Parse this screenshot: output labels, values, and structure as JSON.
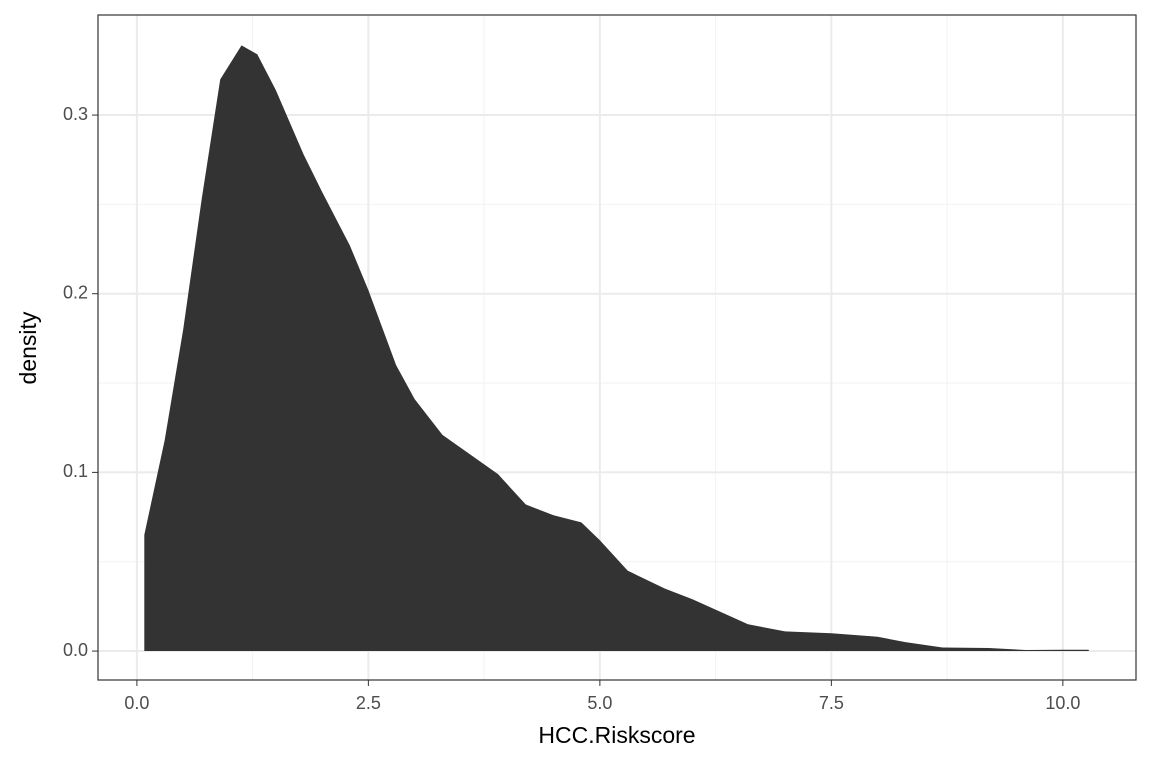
{
  "chart_data": {
    "type": "area",
    "x_label": "HCC.Riskscore",
    "y_label": "density",
    "x": [
      0.08,
      0.3,
      0.5,
      0.7,
      0.9,
      1.13,
      1.3,
      1.5,
      1.8,
      2.0,
      2.3,
      2.5,
      2.8,
      3.0,
      3.3,
      3.6,
      3.9,
      4.2,
      4.5,
      4.8,
      5.0,
      5.3,
      5.7,
      6.0,
      6.3,
      6.6,
      7.0,
      7.5,
      8.0,
      8.3,
      8.7,
      9.2,
      9.6,
      10.0,
      10.28
    ],
    "values": [
      0.065,
      0.118,
      0.18,
      0.253,
      0.32,
      0.339,
      0.334,
      0.314,
      0.278,
      0.257,
      0.227,
      0.202,
      0.16,
      0.141,
      0.121,
      0.11,
      0.099,
      0.082,
      0.076,
      0.072,
      0.062,
      0.045,
      0.035,
      0.029,
      0.022,
      0.015,
      0.011,
      0.01,
      0.008,
      0.005,
      0.002,
      0.0017,
      0.0006,
      0.0007,
      0.0007
    ],
    "color": "#333333",
    "xlim": [
      -0.42,
      10.79
    ],
    "ylim": [
      -0.0162,
      0.356
    ],
    "xticks": [
      {
        "value": 0,
        "label": "0.0"
      },
      2.5,
      {
        "value": 5,
        "label": "5.0"
      },
      7.5,
      {
        "value": 10,
        "label": "10.0"
      }
    ],
    "yticks": [
      {
        "value": 0,
        "label": "0.0"
      },
      0.1,
      0.2,
      0.3
    ],
    "xminor": [
      1.25,
      3.75,
      6.25,
      8.75
    ],
    "yminor": [
      0.05,
      0.15,
      0.25
    ],
    "grid": true
  }
}
